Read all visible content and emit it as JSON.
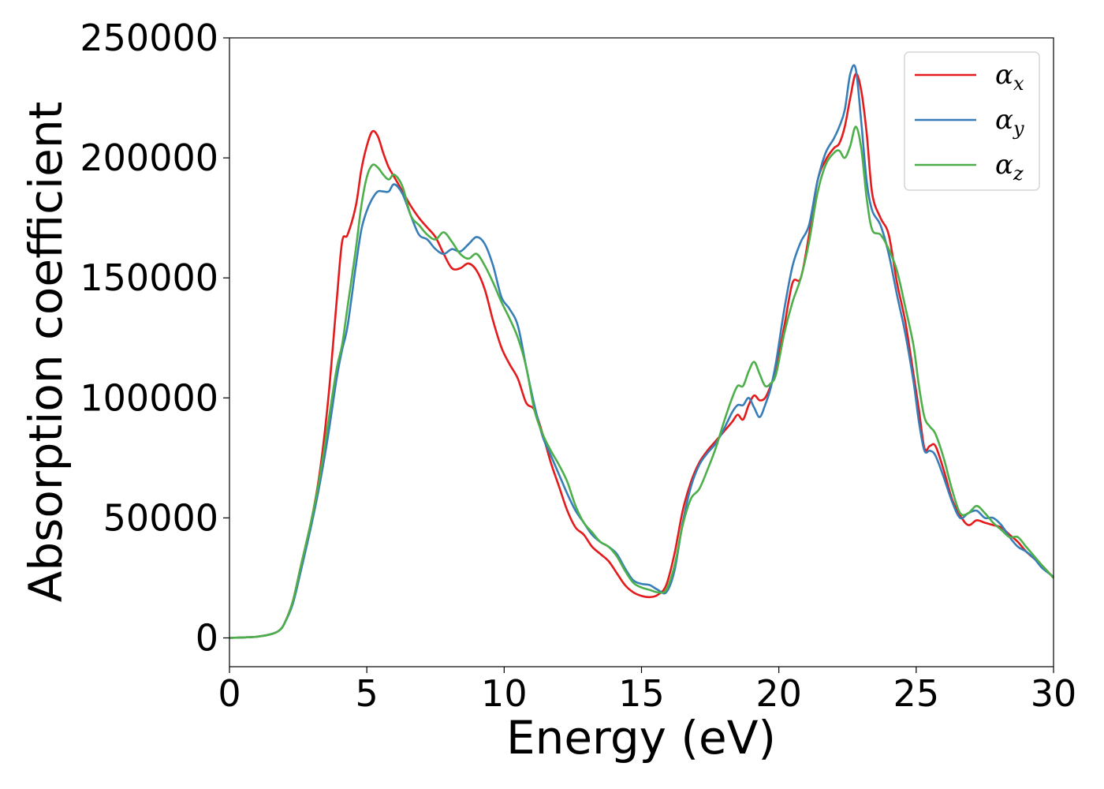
{
  "chart_data": {
    "type": "line",
    "title": "",
    "xlabel": "Energy (eV)",
    "ylabel": "Absorption coefficient",
    "xlim": [
      0,
      30
    ],
    "ylim": [
      -12000,
      250000
    ],
    "xticks": [
      0,
      5,
      10,
      15,
      20,
      25,
      30
    ],
    "yticks": [
      0,
      50000,
      100000,
      150000,
      200000,
      250000
    ],
    "grid": false,
    "legend_position": "upper right",
    "series": [
      {
        "name": "α",
        "subscript": "x",
        "color": "#e41a1c",
        "x": [
          0,
          0.5,
          1.0,
          1.5,
          1.8,
          2.0,
          2.3,
          2.6,
          3.0,
          3.3,
          3.6,
          3.9,
          4.1,
          4.3,
          4.6,
          4.8,
          5.0,
          5.2,
          5.4,
          5.6,
          5.8,
          6.0,
          6.3,
          6.6,
          6.9,
          7.2,
          7.5,
          7.8,
          8.1,
          8.4,
          8.7,
          9.0,
          9.3,
          9.6,
          9.9,
          10.2,
          10.5,
          10.8,
          11.1,
          11.4,
          11.7,
          12.0,
          12.3,
          12.6,
          12.9,
          13.2,
          13.5,
          13.8,
          14.1,
          14.4,
          14.7,
          15.0,
          15.3,
          15.6,
          15.9,
          16.2,
          16.5,
          16.8,
          17.1,
          17.4,
          17.7,
          18.0,
          18.3,
          18.5,
          18.7,
          18.9,
          19.1,
          19.3,
          19.5,
          19.7,
          19.9,
          20.2,
          20.5,
          20.8,
          21.1,
          21.4,
          21.7,
          22.0,
          22.2,
          22.4,
          22.6,
          22.8,
          23.0,
          23.2,
          23.4,
          23.7,
          24.0,
          24.3,
          24.6,
          24.9,
          25.1,
          25.3,
          25.5,
          25.7,
          26.0,
          26.3,
          26.6,
          26.9,
          27.2,
          27.5,
          27.8,
          28.1,
          28.4,
          28.7,
          29.0,
          29.3,
          29.6,
          30.0
        ],
        "y": [
          0,
          200,
          500,
          1500,
          3000,
          6000,
          15000,
          30000,
          50000,
          70000,
          100000,
          140000,
          165000,
          168000,
          180000,
          195000,
          205000,
          211000,
          209000,
          202000,
          196000,
          192000,
          186000,
          180000,
          175000,
          171000,
          167000,
          160000,
          154000,
          154000,
          156000,
          153000,
          145000,
          132000,
          121000,
          114000,
          108000,
          98000,
          95000,
          85000,
          73000,
          63000,
          53000,
          46000,
          43000,
          38000,
          35000,
          32000,
          27000,
          22000,
          19000,
          17500,
          17000,
          18000,
          22000,
          35000,
          53000,
          65000,
          73000,
          78000,
          82000,
          86000,
          90000,
          93000,
          91000,
          97000,
          101000,
          99000,
          100000,
          105000,
          112000,
          130000,
          148000,
          150000,
          168000,
          190000,
          199000,
          204000,
          206000,
          213000,
          225000,
          235000,
          228000,
          210000,
          185000,
          175000,
          168000,
          148000,
          132000,
          110000,
          95000,
          79000,
          80000,
          80000,
          70000,
          58000,
          51000,
          47000,
          49000,
          48000,
          47000,
          46000,
          43000,
          40000,
          36000,
          33000,
          30000,
          25000
        ]
      },
      {
        "name": "α",
        "subscript": "y",
        "color": "#377eb8",
        "x": [
          0,
          0.5,
          1.0,
          1.5,
          1.8,
          2.0,
          2.3,
          2.6,
          3.0,
          3.3,
          3.6,
          3.9,
          4.1,
          4.3,
          4.6,
          4.8,
          5.0,
          5.2,
          5.4,
          5.6,
          5.8,
          6.0,
          6.3,
          6.6,
          6.9,
          7.2,
          7.5,
          7.8,
          8.1,
          8.4,
          8.7,
          9.0,
          9.3,
          9.6,
          9.9,
          10.2,
          10.5,
          10.8,
          11.1,
          11.4,
          11.7,
          12.0,
          12.3,
          12.6,
          12.9,
          13.2,
          13.5,
          13.8,
          14.1,
          14.4,
          14.7,
          15.0,
          15.3,
          15.6,
          15.9,
          16.2,
          16.5,
          16.8,
          17.1,
          17.4,
          17.7,
          18.0,
          18.3,
          18.5,
          18.7,
          18.9,
          19.1,
          19.3,
          19.5,
          19.7,
          19.9,
          20.2,
          20.5,
          20.8,
          21.1,
          21.4,
          21.7,
          22.0,
          22.2,
          22.4,
          22.6,
          22.8,
          23.0,
          23.2,
          23.4,
          23.7,
          24.0,
          24.3,
          24.6,
          24.9,
          25.1,
          25.3,
          25.5,
          25.7,
          26.0,
          26.3,
          26.6,
          26.9,
          27.2,
          27.5,
          27.8,
          28.1,
          28.4,
          28.7,
          29.0,
          29.3,
          29.6,
          30.0
        ],
        "y": [
          0,
          200,
          500,
          1500,
          3000,
          6000,
          14000,
          28000,
          48000,
          65000,
          85000,
          108000,
          120000,
          130000,
          155000,
          170000,
          178000,
          183000,
          186000,
          186000,
          186000,
          189000,
          185000,
          176000,
          168000,
          166000,
          162000,
          160000,
          162000,
          161000,
          164000,
          167000,
          164000,
          155000,
          142000,
          137000,
          130000,
          113000,
          97000,
          84000,
          76000,
          68000,
          60000,
          53000,
          48000,
          43000,
          40000,
          38000,
          35000,
          29000,
          24000,
          22500,
          22000,
          20000,
          19000,
          28000,
          48000,
          63000,
          72000,
          77000,
          81000,
          87000,
          94000,
          97000,
          97000,
          100000,
          96000,
          92000,
          97000,
          104000,
          115000,
          137000,
          155000,
          165000,
          172000,
          190000,
          202000,
          208000,
          213000,
          220000,
          235000,
          237000,
          215000,
          190000,
          178000,
          172000,
          160000,
          143000,
          127000,
          107000,
          90000,
          78000,
          78000,
          76000,
          67000,
          57000,
          50000,
          52000,
          53000,
          50000,
          50000,
          47000,
          42000,
          38000,
          36000,
          33000,
          29000,
          25500
        ]
      },
      {
        "name": "α",
        "subscript": "z",
        "color": "#4daf4a",
        "x": [
          0,
          0.5,
          1.0,
          1.5,
          1.8,
          2.0,
          2.3,
          2.6,
          3.0,
          3.3,
          3.6,
          3.9,
          4.1,
          4.3,
          4.6,
          4.8,
          5.0,
          5.2,
          5.4,
          5.6,
          5.8,
          6.0,
          6.3,
          6.6,
          6.9,
          7.2,
          7.5,
          7.8,
          8.1,
          8.4,
          8.7,
          9.0,
          9.3,
          9.6,
          9.9,
          10.2,
          10.5,
          10.8,
          11.1,
          11.4,
          11.7,
          12.0,
          12.3,
          12.6,
          12.9,
          13.2,
          13.5,
          13.8,
          14.1,
          14.4,
          14.7,
          15.0,
          15.3,
          15.6,
          15.9,
          16.2,
          16.5,
          16.8,
          17.1,
          17.4,
          17.7,
          18.0,
          18.3,
          18.5,
          18.7,
          18.9,
          19.1,
          19.3,
          19.5,
          19.7,
          19.9,
          20.2,
          20.5,
          20.8,
          21.1,
          21.4,
          21.7,
          22.0,
          22.2,
          22.4,
          22.6,
          22.8,
          23.0,
          23.2,
          23.4,
          23.7,
          24.0,
          24.3,
          24.6,
          24.9,
          25.1,
          25.3,
          25.5,
          25.7,
          26.0,
          26.3,
          26.6,
          26.9,
          27.2,
          27.5,
          27.8,
          28.1,
          28.4,
          28.7,
          29.0,
          29.3,
          29.6,
          30.0
        ],
        "y": [
          0,
          200,
          500,
          1500,
          3000,
          6000,
          15000,
          30000,
          50000,
          68000,
          90000,
          112000,
          122000,
          138000,
          162000,
          180000,
          192000,
          197000,
          196000,
          193000,
          191000,
          193000,
          188000,
          176000,
          172000,
          168000,
          166000,
          169000,
          165000,
          160000,
          158000,
          160000,
          155000,
          148000,
          140000,
          133000,
          125000,
          113000,
          95000,
          85000,
          78000,
          72000,
          65000,
          55000,
          48000,
          44000,
          40000,
          38000,
          34000,
          28000,
          23000,
          21000,
          20000,
          19000,
          20000,
          30000,
          47000,
          58000,
          62000,
          70000,
          79000,
          90000,
          100000,
          105000,
          105000,
          111000,
          115000,
          110000,
          105000,
          106000,
          110000,
          127000,
          140000,
          150000,
          165000,
          185000,
          197000,
          202000,
          203000,
          200000,
          205000,
          213000,
          204000,
          183000,
          170000,
          168000,
          162000,
          153000,
          138000,
          122000,
          105000,
          92000,
          88000,
          85000,
          75000,
          62000,
          52000,
          52000,
          55000,
          52000,
          48000,
          45000,
          42000,
          42000,
          38000,
          34000,
          30000,
          25000
        ]
      }
    ]
  }
}
